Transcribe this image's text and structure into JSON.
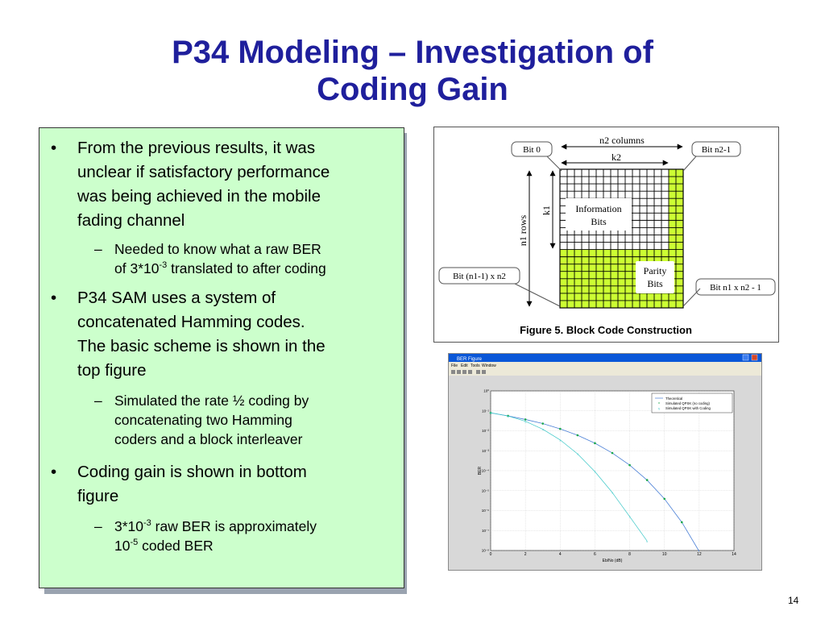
{
  "slide": {
    "title_line1": "P34 Modeling – Investigation of",
    "title_line2": "Coding Gain",
    "page_number": "14"
  },
  "bullets": [
    {
      "lines": [
        "From the previous results, it was",
        "unclear if satisfactory performance",
        "was being achieved in the mobile",
        "fading channel"
      ],
      "sub": [
        {
          "line1_pre": "Needed to know what a raw BER",
          "line2_pre": "of 3*10",
          "sup": "-3",
          "line2_post": " translated to after coding"
        }
      ]
    },
    {
      "lines": [
        "P34 SAM uses a system of",
        "concatenated Hamming codes.",
        "The basic scheme is shown in the",
        "top figure"
      ],
      "sub": [
        {
          "lines": [
            "Simulated the rate ½ coding by",
            "concatenating two Hamming",
            "coders and a block interleaver"
          ]
        }
      ]
    },
    {
      "lines": [
        "Coding gain is shown in bottom",
        "figure"
      ],
      "sub": [
        {
          "l1_pre": "3*10",
          "l1_sup": "-3",
          "l1_post": " raw BER is approximately",
          "l2_pre": "10",
          "l2_sup": "-5",
          "l2_post": " coded BER"
        }
      ]
    }
  ],
  "markers": {
    "bullet": "•",
    "dash": "–"
  },
  "block_figure": {
    "caption": "Figure 5. Block Code Construction",
    "labels": {
      "n2_columns": "n2 columns",
      "k2": "k2",
      "n1_rows": "n1 rows",
      "k1": "k1",
      "information_bits_1": "Information",
      "information_bits_2": "Bits",
      "parity_bits_1": "Parity",
      "parity_bits_2": "Bits",
      "bit_0": "Bit 0",
      "bit_n2_1": "Bit n2-1",
      "bit_n1_1_x_n2": "Bit (n1-1) x n2",
      "bit_n1_x_n2_1": "Bit n1 x n2 - 1"
    },
    "colors": {
      "parity": "#ccff33",
      "grid": "#000000"
    }
  },
  "ber_figure": {
    "window_title": "BER Figure",
    "menu": [
      "File",
      "Edit",
      "Tools",
      "Window"
    ],
    "ylabel": "BER",
    "xlabel": "Eb/No (dB)",
    "yticks": [
      "10⁰",
      "10⁻¹",
      "10⁻²",
      "10⁻³",
      "10⁻⁴",
      "10⁻⁵",
      "10⁻⁶",
      "10⁻⁷",
      "10⁻⁸"
    ],
    "xticks": [
      "0",
      "2",
      "4",
      "6",
      "8",
      "10",
      "12",
      "14"
    ],
    "legend": [
      "Theoretical",
      "Simulated QPSK (no coding)",
      "Simulated QPSK with Coding"
    ],
    "colors": {
      "titlebar": "#0a57d8",
      "curve": "#4a7fd6",
      "nocoding": "#1aa84a",
      "coding": "#39c7c7"
    }
  },
  "chart_data": {
    "type": "line",
    "xlabel": "Eb/No (dB)",
    "ylabel": "BER",
    "xlim": [
      0,
      14
    ],
    "ylim_log10": [
      -8,
      0
    ],
    "yscale": "log",
    "series": [
      {
        "name": "Theoretical",
        "x": [
          0,
          1,
          2,
          3,
          4,
          5,
          6,
          7,
          8,
          9,
          10,
          11,
          12
        ],
        "y": [
          0.079,
          0.056,
          0.037,
          0.023,
          0.0125,
          0.006,
          0.0024,
          0.00077,
          0.00019,
          3.36e-05,
          3.9e-06,
          2.6e-07,
          9e-09
        ]
      },
      {
        "name": "Simulated QPSK (no coding)",
        "x": [
          0,
          1,
          2,
          3,
          4,
          5,
          6,
          7,
          8,
          9,
          10,
          11
        ],
        "y": [
          0.079,
          0.056,
          0.037,
          0.023,
          0.0125,
          0.006,
          0.0024,
          0.00077,
          0.00019,
          3.4e-05,
          3.9e-06,
          2.6e-07
        ]
      },
      {
        "name": "Simulated QPSK with Coding",
        "x": [
          0,
          1,
          2,
          3,
          4,
          5,
          6,
          7,
          8,
          9
        ],
        "y": [
          0.08,
          0.055,
          0.03,
          0.012,
          0.0035,
          0.0007,
          9e-05,
          8e-06,
          5e-07,
          3e-08
        ]
      }
    ]
  }
}
